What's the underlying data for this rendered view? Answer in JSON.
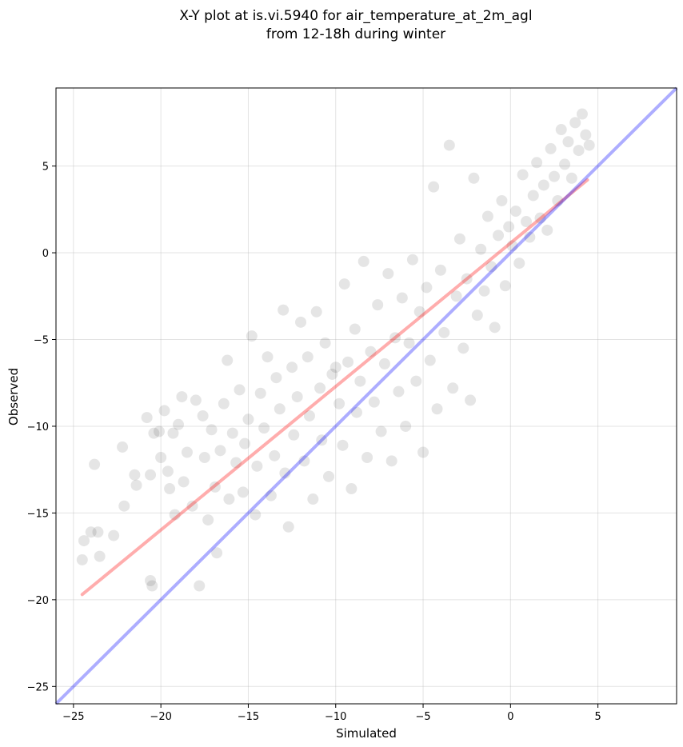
{
  "chart_data": {
    "type": "scatter",
    "title": "X-Y plot at is.vi.5940 for air_temperature_at_2m_agl",
    "subtitle": "from 12-18h during winter",
    "xlabel": "Simulated",
    "ylabel": "Observed",
    "xlim": [
      -26,
      9.5
    ],
    "ylim": [
      -26,
      9.5
    ],
    "xticks": [
      -25,
      -20,
      -15,
      -10,
      -5,
      0,
      5
    ],
    "yticks": [
      -25,
      -20,
      -15,
      -10,
      -5,
      0,
      5
    ],
    "xtick_labels": [
      "−25",
      "−20",
      "−15",
      "−10",
      "−5",
      "0",
      "5"
    ],
    "ytick_labels": [
      "−25",
      "−20",
      "−15",
      "−10",
      "−5",
      "0",
      "5"
    ],
    "grid": true,
    "point_color": "#000000",
    "point_alpha": 0.1,
    "series": [
      {
        "type": "scatter",
        "points": [
          [
            -24.5,
            -17.7
          ],
          [
            -24.4,
            -16.6
          ],
          [
            -24.0,
            -16.1
          ],
          [
            -23.8,
            -12.2
          ],
          [
            -23.6,
            -16.1
          ],
          [
            -23.5,
            -17.5
          ],
          [
            -22.7,
            -16.3
          ],
          [
            -22.2,
            -11.2
          ],
          [
            -22.1,
            -14.6
          ],
          [
            -21.5,
            -12.8
          ],
          [
            -21.4,
            -13.4
          ],
          [
            -20.8,
            -9.5
          ],
          [
            -20.6,
            -12.8
          ],
          [
            -20.6,
            -18.9
          ],
          [
            -20.5,
            -19.2
          ],
          [
            -20.4,
            -10.4
          ],
          [
            -20.1,
            -10.3
          ],
          [
            -20.0,
            -11.8
          ],
          [
            -19.8,
            -9.1
          ],
          [
            -19.6,
            -12.6
          ],
          [
            -19.5,
            -13.6
          ],
          [
            -19.3,
            -10.4
          ],
          [
            -19.2,
            -15.1
          ],
          [
            -19.0,
            -9.9
          ],
          [
            -18.8,
            -8.3
          ],
          [
            -18.7,
            -13.2
          ],
          [
            -18.5,
            -11.5
          ],
          [
            -18.2,
            -14.6
          ],
          [
            -18.0,
            -8.5
          ],
          [
            -17.8,
            -19.2
          ],
          [
            -17.6,
            -9.4
          ],
          [
            -17.5,
            -11.8
          ],
          [
            -17.3,
            -15.4
          ],
          [
            -17.1,
            -10.2
          ],
          [
            -16.9,
            -13.5
          ],
          [
            -16.8,
            -17.3
          ],
          [
            -16.6,
            -11.4
          ],
          [
            -16.4,
            -8.7
          ],
          [
            -16.2,
            -6.2
          ],
          [
            -16.1,
            -14.2
          ],
          [
            -15.9,
            -10.4
          ],
          [
            -15.7,
            -12.1
          ],
          [
            -15.5,
            -7.9
          ],
          [
            -15.3,
            -13.8
          ],
          [
            -15.2,
            -11.0
          ],
          [
            -15.0,
            -9.6
          ],
          [
            -14.8,
            -4.8
          ],
          [
            -14.6,
            -15.1
          ],
          [
            -14.5,
            -12.3
          ],
          [
            -14.3,
            -8.1
          ],
          [
            -14.1,
            -10.1
          ],
          [
            -13.9,
            -6.0
          ],
          [
            -13.7,
            -14.0
          ],
          [
            -13.5,
            -11.7
          ],
          [
            -13.4,
            -7.2
          ],
          [
            -13.2,
            -9.0
          ],
          [
            -13.0,
            -3.3
          ],
          [
            -12.9,
            -12.7
          ],
          [
            -12.7,
            -15.8
          ],
          [
            -12.5,
            -6.6
          ],
          [
            -12.4,
            -10.5
          ],
          [
            -12.2,
            -8.3
          ],
          [
            -12.0,
            -4.0
          ],
          [
            -11.8,
            -12.0
          ],
          [
            -11.6,
            -6.0
          ],
          [
            -11.5,
            -9.4
          ],
          [
            -11.3,
            -14.2
          ],
          [
            -11.1,
            -3.4
          ],
          [
            -10.9,
            -7.8
          ],
          [
            -10.8,
            -10.8
          ],
          [
            -10.6,
            -5.2
          ],
          [
            -10.4,
            -12.9
          ],
          [
            -10.2,
            -7.0
          ],
          [
            -10.0,
            -6.6
          ],
          [
            -9.8,
            -8.7
          ],
          [
            -9.6,
            -11.1
          ],
          [
            -9.5,
            -1.8
          ],
          [
            -9.3,
            -6.3
          ],
          [
            -9.1,
            -13.6
          ],
          [
            -8.9,
            -4.4
          ],
          [
            -8.8,
            -9.2
          ],
          [
            -8.6,
            -7.4
          ],
          [
            -8.4,
            -0.5
          ],
          [
            -8.2,
            -11.8
          ],
          [
            -8.0,
            -5.7
          ],
          [
            -7.8,
            -8.6
          ],
          [
            -7.6,
            -3.0
          ],
          [
            -7.4,
            -10.3
          ],
          [
            -7.2,
            -6.4
          ],
          [
            -7.0,
            -1.2
          ],
          [
            -6.8,
            -12.0
          ],
          [
            -6.6,
            -4.9
          ],
          [
            -6.4,
            -8.0
          ],
          [
            -6.2,
            -2.6
          ],
          [
            -6.0,
            -10.0
          ],
          [
            -5.8,
            -5.2
          ],
          [
            -5.6,
            -0.4
          ],
          [
            -5.4,
            -7.4
          ],
          [
            -5.2,
            -3.4
          ],
          [
            -5.0,
            -11.5
          ],
          [
            -4.8,
            -2.0
          ],
          [
            -4.6,
            -6.2
          ],
          [
            -4.4,
            3.8
          ],
          [
            -4.2,
            -9.0
          ],
          [
            -4.0,
            -1.0
          ],
          [
            -3.8,
            -4.6
          ],
          [
            -3.5,
            6.2
          ],
          [
            -3.3,
            -7.8
          ],
          [
            -3.1,
            -2.5
          ],
          [
            -2.9,
            0.8
          ],
          [
            -2.7,
            -5.5
          ],
          [
            -2.5,
            -1.5
          ],
          [
            -2.3,
            -8.5
          ],
          [
            -2.1,
            4.3
          ],
          [
            -1.9,
            -3.6
          ],
          [
            -1.7,
            0.2
          ],
          [
            -1.5,
            -2.2
          ],
          [
            -1.3,
            2.1
          ],
          [
            -1.1,
            -0.8
          ],
          [
            -0.9,
            -4.3
          ],
          [
            -0.7,
            1.0
          ],
          [
            -0.5,
            3.0
          ],
          [
            -0.3,
            -1.9
          ],
          [
            -0.1,
            1.5
          ],
          [
            0.1,
            0.4
          ],
          [
            0.3,
            2.4
          ],
          [
            0.5,
            -0.6
          ],
          [
            0.7,
            4.5
          ],
          [
            0.9,
            1.8
          ],
          [
            1.1,
            0.9
          ],
          [
            1.3,
            3.3
          ],
          [
            1.5,
            5.2
          ],
          [
            1.7,
            2.0
          ],
          [
            1.9,
            3.9
          ],
          [
            2.1,
            1.3
          ],
          [
            2.3,
            6.0
          ],
          [
            2.5,
            4.4
          ],
          [
            2.7,
            3.0
          ],
          [
            2.9,
            7.1
          ],
          [
            3.1,
            5.1
          ],
          [
            3.3,
            6.4
          ],
          [
            3.5,
            4.3
          ],
          [
            3.7,
            7.5
          ],
          [
            3.9,
            5.9
          ],
          [
            4.1,
            8.0
          ],
          [
            4.3,
            6.8
          ],
          [
            4.5,
            6.2
          ]
        ]
      }
    ],
    "fit_line": {
      "color": "#ff0000",
      "x": [
        -24.5,
        4.4
      ],
      "y": [
        -19.7,
        4.2
      ]
    },
    "identity_line": {
      "color": "#0000ff",
      "x": [
        -26,
        9.5
      ],
      "y": [
        -26,
        9.5
      ]
    }
  }
}
